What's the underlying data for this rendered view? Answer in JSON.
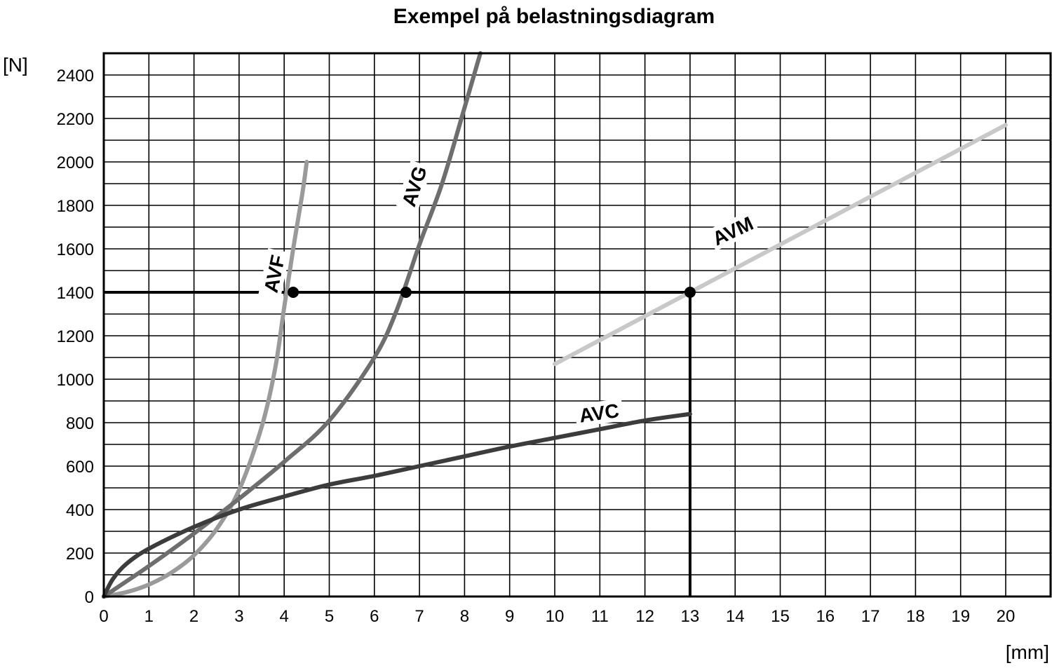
{
  "chart_data": {
    "type": "line",
    "title": "Exempel på belastningsdiagram",
    "ylabel": "[N]",
    "xlabel": "[mm]",
    "xlim": [
      0,
      21
    ],
    "ylim": [
      0,
      2500
    ],
    "x_ticks": [
      0,
      1,
      2,
      3,
      4,
      5,
      6,
      7,
      8,
      9,
      10,
      11,
      12,
      13,
      14,
      15,
      16,
      17,
      18,
      19,
      20
    ],
    "y_ticks": [
      0,
      200,
      400,
      600,
      800,
      1000,
      1200,
      1400,
      1600,
      1800,
      2000,
      2200,
      2400
    ],
    "grid": true,
    "colors": {
      "AVF": "#9a9a9a",
      "AVG": "#6e6e6e",
      "AVM": "#c8c8c8",
      "AVC": "#3c3c3c",
      "reference": "#000000"
    },
    "series": [
      {
        "name": "AVF",
        "x": [
          0,
          0.5,
          1,
          1.5,
          2,
          2.5,
          3,
          3.5,
          3.8,
          4.0,
          4.2,
          4.4,
          4.5
        ],
        "y": [
          0,
          20,
          55,
          110,
          190,
          310,
          490,
          780,
          1050,
          1330,
          1600,
          1850,
          2000
        ]
      },
      {
        "name": "AVG",
        "x": [
          0,
          1,
          2,
          3,
          4,
          5,
          6,
          6.5,
          7,
          7.5,
          8,
          8.35
        ],
        "y": [
          0,
          140,
          290,
          450,
          620,
          810,
          1100,
          1320,
          1620,
          1900,
          2250,
          2500
        ]
      },
      {
        "name": "AVM",
        "x": [
          10,
          13,
          20
        ],
        "y": [
          1070,
          1400,
          2170
        ]
      },
      {
        "name": "AVC",
        "x": [
          0,
          0.2,
          0.5,
          1,
          2,
          3,
          4,
          5,
          6,
          7,
          8,
          9,
          10,
          11,
          12,
          13
        ],
        "y": [
          0,
          80,
          150,
          220,
          320,
          400,
          460,
          515,
          555,
          600,
          645,
          690,
          730,
          770,
          810,
          840
        ]
      }
    ],
    "reference_lines": [
      {
        "from": [
          0,
          1400
        ],
        "to": [
          13,
          1400
        ]
      },
      {
        "from": [
          13,
          0
        ],
        "to": [
          13,
          1400
        ]
      }
    ],
    "markers": [
      {
        "x": 4.2,
        "y": 1400
      },
      {
        "x": 6.7,
        "y": 1400
      },
      {
        "x": 13,
        "y": 1400
      }
    ]
  }
}
